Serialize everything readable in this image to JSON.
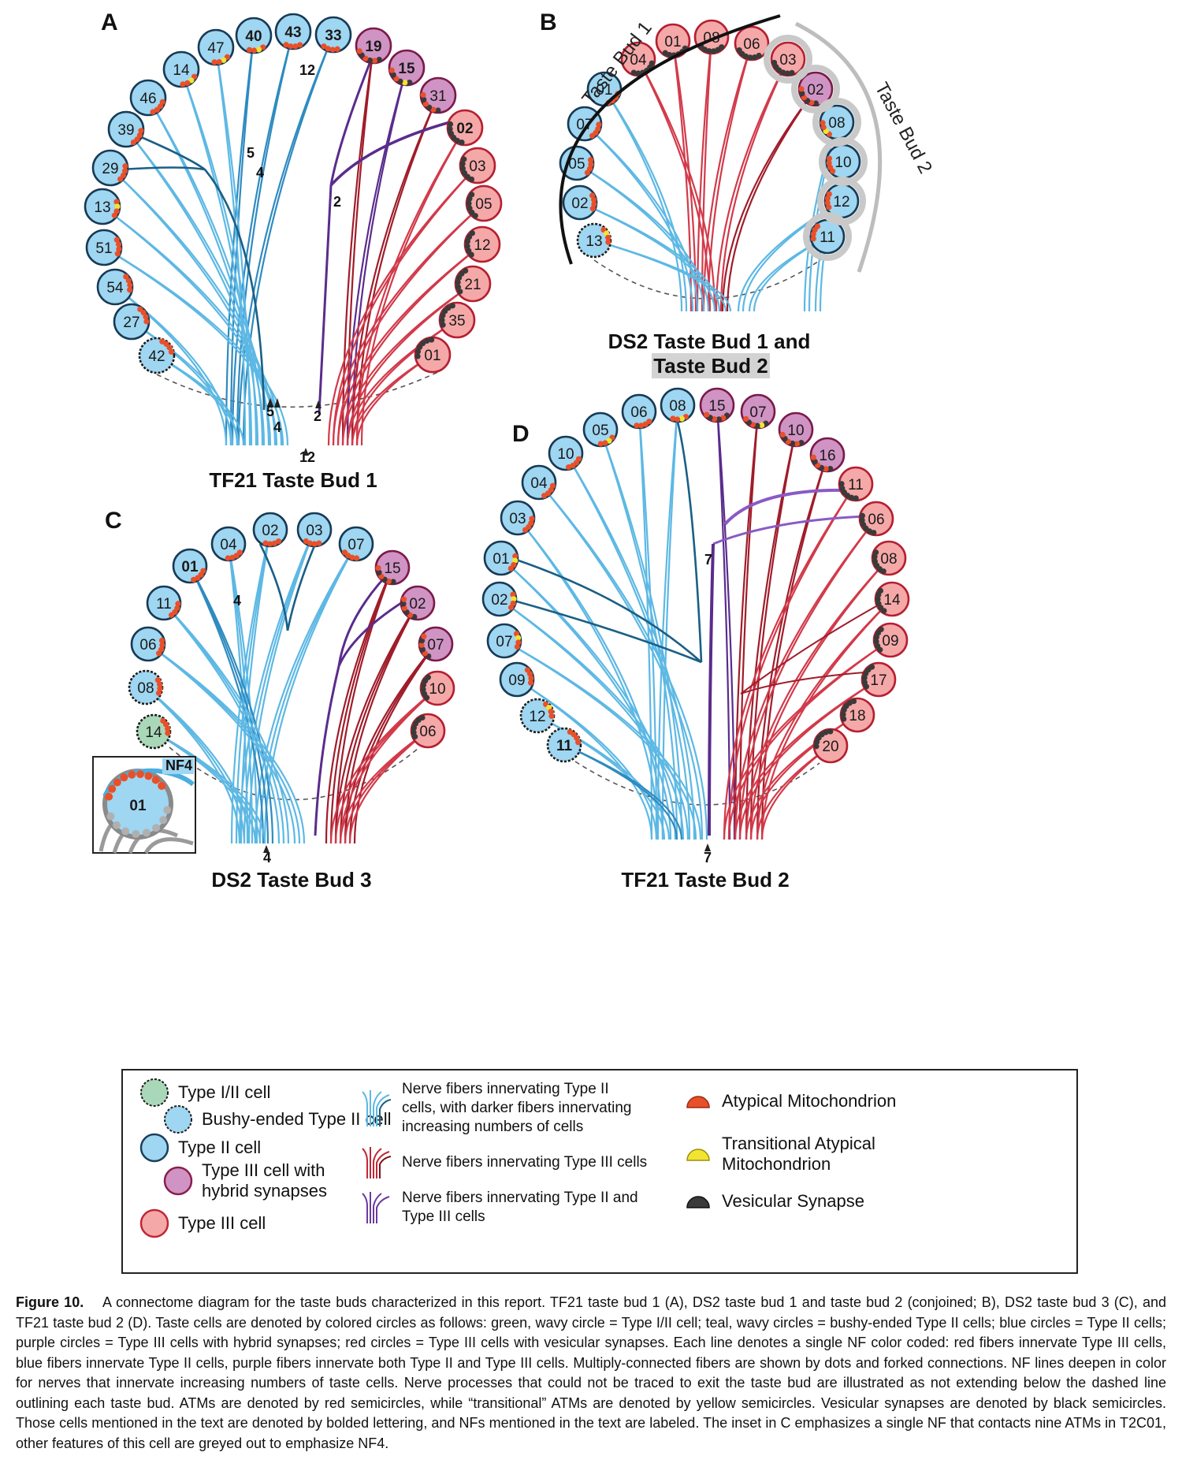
{
  "panels": {
    "A": {
      "letter": "A",
      "title": "TF21 Taste Bud 1",
      "cells": [
        {
          "id": "40",
          "type": "II",
          "bold": true,
          "yellow": true
        },
        {
          "id": "43",
          "type": "II",
          "bold": true
        },
        {
          "id": "33",
          "type": "II",
          "bold": true
        },
        {
          "id": "19",
          "type": "IIIH",
          "bold": true
        },
        {
          "id": "15",
          "type": "IIIH",
          "bold": true,
          "yellow": true
        },
        {
          "id": "31",
          "type": "IIIH"
        },
        {
          "id": "02",
          "type": "III",
          "bold": true
        },
        {
          "id": "03",
          "type": "III"
        },
        {
          "id": "05",
          "type": "III"
        },
        {
          "id": "12",
          "type": "III"
        },
        {
          "id": "21",
          "type": "III"
        },
        {
          "id": "35",
          "type": "III"
        },
        {
          "id": "01",
          "type": "III"
        },
        {
          "id": "47",
          "type": "II",
          "yellow": true
        },
        {
          "id": "14",
          "type": "II",
          "yellow": true
        },
        {
          "id": "46",
          "type": "II"
        },
        {
          "id": "39",
          "type": "II"
        },
        {
          "id": "29",
          "type": "II"
        },
        {
          "id": "13",
          "type": "II",
          "yellow": true
        },
        {
          "id": "51",
          "type": "II"
        },
        {
          "id": "54",
          "type": "II"
        },
        {
          "id": "27",
          "type": "II"
        },
        {
          "id": "42",
          "type": "BUSHY"
        }
      ],
      "fiber_labels": [
        "12",
        "5",
        "4",
        "2",
        "5",
        "4",
        "2",
        "12"
      ]
    },
    "B": {
      "letter": "B",
      "title_line1": "DS2 Taste Bud 1 and",
      "title_line2": "Taste Bud 2",
      "arc_label_1": "Taste Bud 1",
      "arc_label_2": "Taste Bud 2",
      "cells": [
        {
          "id": "01",
          "type": "III"
        },
        {
          "id": "08",
          "type": "III"
        },
        {
          "id": "06",
          "type": "III"
        },
        {
          "id": "04",
          "type": "III"
        },
        {
          "id": "03",
          "type": "III"
        },
        {
          "id": "02",
          "type": "IIIH"
        },
        {
          "id": "08",
          "type": "II",
          "yellow": true
        },
        {
          "id": "10",
          "type": "II"
        },
        {
          "id": "12",
          "type": "II"
        },
        {
          "id": "11",
          "type": "II"
        },
        {
          "id": "01",
          "type": "II"
        },
        {
          "id": "07",
          "type": "II"
        },
        {
          "id": "05",
          "type": "II"
        },
        {
          "id": "02",
          "type": "II"
        },
        {
          "id": "13",
          "type": "BUSHY",
          "yellow": true
        }
      ]
    },
    "C": {
      "letter": "C",
      "title": "DS2 Taste Bud 3",
      "cells": [
        {
          "id": "02",
          "type": "II"
        },
        {
          "id": "03",
          "type": "II"
        },
        {
          "id": "04",
          "type": "II"
        },
        {
          "id": "07",
          "type": "II"
        },
        {
          "id": "01",
          "type": "II",
          "bold": true
        },
        {
          "id": "15",
          "type": "IIIH"
        },
        {
          "id": "11",
          "type": "II"
        },
        {
          "id": "02",
          "type": "IIIH"
        },
        {
          "id": "06",
          "type": "II"
        },
        {
          "id": "07",
          "type": "IIIH"
        },
        {
          "id": "08",
          "type": "BUSHY"
        },
        {
          "id": "10",
          "type": "III"
        },
        {
          "id": "14",
          "type": "I/II"
        },
        {
          "id": "06",
          "type": "III"
        }
      ],
      "fiber_labels": [
        "4",
        "4"
      ],
      "inset": {
        "label": "NF4",
        "cell": "01"
      }
    },
    "D": {
      "letter": "D",
      "title": "TF21 Taste Bud 2",
      "cells": [
        {
          "id": "06",
          "type": "II"
        },
        {
          "id": "08",
          "type": "II",
          "yellow": true
        },
        {
          "id": "15",
          "type": "IIIH"
        },
        {
          "id": "07",
          "type": "IIIH",
          "yellow": true
        },
        {
          "id": "05",
          "type": "II",
          "yellow": true
        },
        {
          "id": "10",
          "type": "IIIH"
        },
        {
          "id": "10",
          "type": "II"
        },
        {
          "id": "16",
          "type": "IIIH"
        },
        {
          "id": "04",
          "type": "II"
        },
        {
          "id": "11",
          "type": "III"
        },
        {
          "id": "03",
          "type": "II"
        },
        {
          "id": "06",
          "type": "III"
        },
        {
          "id": "01",
          "type": "II",
          "yellow": true
        },
        {
          "id": "08",
          "type": "III"
        },
        {
          "id": "02",
          "type": "II",
          "yellow": true
        },
        {
          "id": "14",
          "type": "III"
        },
        {
          "id": "07",
          "type": "II",
          "yellow": true
        },
        {
          "id": "09",
          "type": "III"
        },
        {
          "id": "09",
          "type": "II"
        },
        {
          "id": "17",
          "type": "III"
        },
        {
          "id": "12",
          "type": "BUSHY",
          "yellow": true
        },
        {
          "id": "18",
          "type": "III"
        },
        {
          "id": "11",
          "type": "BUSHY",
          "bold": true
        },
        {
          "id": "20",
          "type": "III"
        }
      ],
      "fiber_labels": [
        "7",
        "7"
      ]
    }
  },
  "legend": {
    "type_i_ii": "Type I/II cell",
    "bushy": "Bushy-ended Type II cell",
    "type_ii": "Type II cell",
    "type_iii_hybrid_1": "Type III cell with",
    "type_iii_hybrid_2": "hybrid synapses",
    "type_iii": "Type III cell",
    "nf_type2_1": "Nerve fibers innervating Type II",
    "nf_type2_2": "cells, with darker fibers innervating",
    "nf_type2_3": "increasing numbers of cells",
    "nf_type3": "Nerve fibers innervating Type III cells",
    "nf_both_1": "Nerve fibers innervating Type II and",
    "nf_both_2": "Type III cells",
    "atm": "Atypical Mitochondrion",
    "transitional_1": "Transitional Atypical",
    "transitional_2": "Mitochondrion",
    "vesicular": "Vesicular Synapse"
  },
  "caption": {
    "label": "Figure 10.",
    "text": "A connectome diagram for the taste buds characterized in this report. TF21 taste bud 1 (A), DS2 taste bud 1 and taste bud 2 (conjoined; B), DS2 taste bud 3 (C), and TF21 taste bud 2 (D). Taste cells are denoted by colored circles as follows: green, wavy circle = Type I/II cell; teal, wavy circles = bushy-ended Type II cells; blue circles = Type II cells; purple circles = Type III cells with hybrid synapses; red circles = Type III cells with vesicular synapses. Each line denotes a single NF color coded: red fibers innervate Type III cells, blue fibers innervate Type II cells, purple fibers innervate both Type II and Type III cells. Multiply-connected fibers are shown by dots and forked connections. NF lines deepen in color for nerves that innervate increasing numbers of taste cells. Nerve processes that could not be traced to exit the taste bud are illustrated as not extending below the dashed line outlining each taste bud. ATMs are denoted by red semicircles, while “transitional” ATMs are denoted by yellow semicircles. Vesicular synapses are denoted by black semicircles. Those cells mentioned in the text are denoted by bolded lettering, and NFs mentioned in the text are labeled. The inset in C emphasizes a single NF that contacts nine ATMs in T2C01, other features of this cell are greyed out to emphasize NF4."
  },
  "colors": {
    "type2_fill": "#9fd6f1",
    "type3_fill": "#f5a8a8",
    "hybrid_fill": "#cf94c4",
    "type12_fill": "#a9d8b8",
    "fiber_light_blue": "#5db8e4",
    "fiber_mid_blue": "#2e8bc0",
    "fiber_dark_blue": "#1a5f86",
    "fiber_red": "#d23a4a",
    "fiber_dark_red": "#a01c2a",
    "fiber_purple": "#5a2c8c",
    "atm": "#e8502a",
    "transitional": "#f2e531",
    "vesicle": "#3a3a3a"
  }
}
